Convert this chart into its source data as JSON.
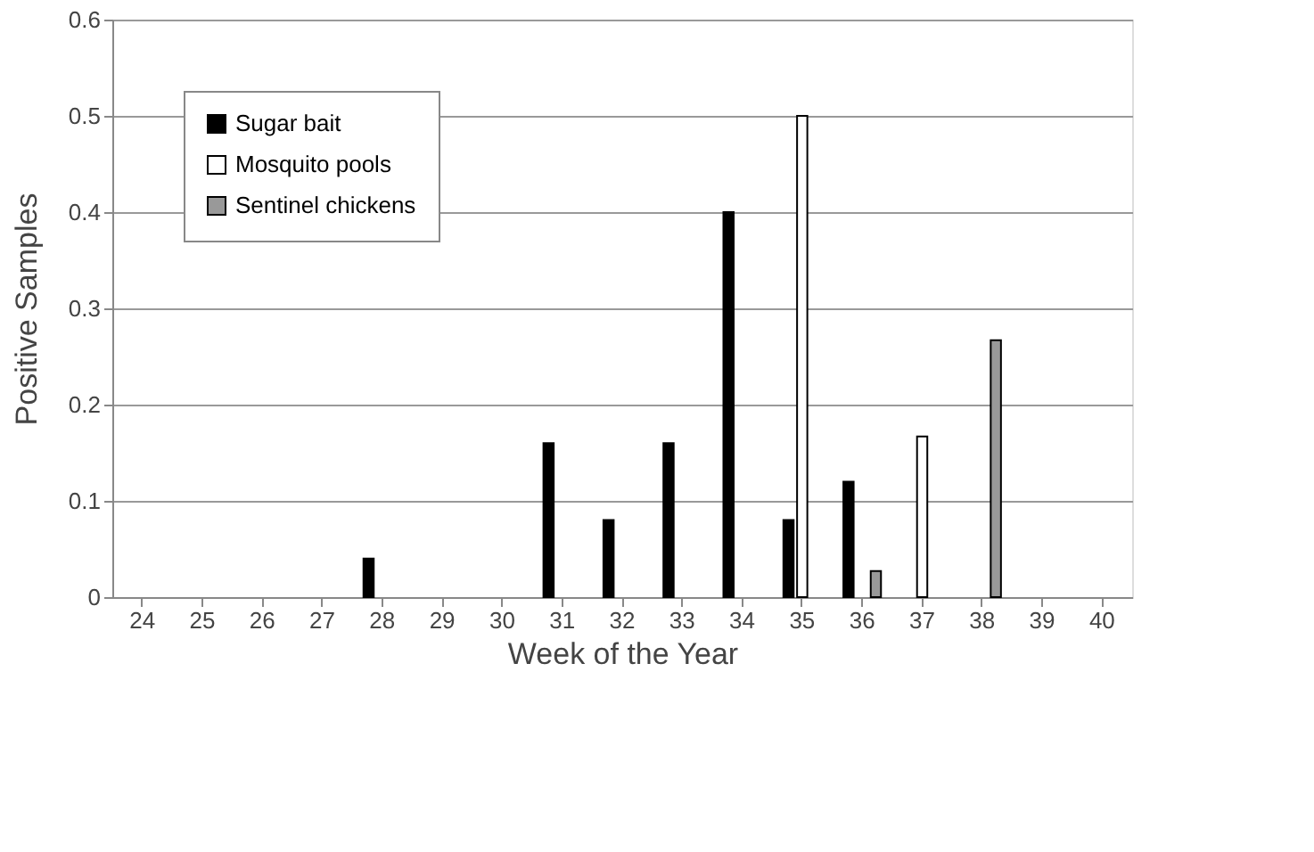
{
  "chart_data": {
    "type": "bar",
    "xlabel": "Week of the Year",
    "ylabel": "Positive Samples",
    "categories": [
      "24",
      "25",
      "26",
      "27",
      "28",
      "29",
      "30",
      "31",
      "32",
      "33",
      "34",
      "35",
      "36",
      "37",
      "38",
      "39",
      "40"
    ],
    "series": [
      {
        "name": "Sugar bait",
        "color": "#000000",
        "values": [
          null,
          null,
          null,
          null,
          0.04,
          null,
          null,
          0.16,
          0.08,
          0.16,
          0.4,
          0.08,
          0.12,
          null,
          null,
          null,
          null
        ]
      },
      {
        "name": "Mosquito pools",
        "color": "#ffffff",
        "values": [
          null,
          null,
          null,
          null,
          null,
          null,
          null,
          null,
          null,
          null,
          null,
          0.5,
          null,
          0.167,
          null,
          null,
          null
        ]
      },
      {
        "name": "Sentinel chickens",
        "color": "#999999",
        "values": [
          null,
          null,
          null,
          null,
          null,
          null,
          null,
          null,
          null,
          null,
          null,
          null,
          0.027,
          null,
          0.267,
          null,
          null
        ]
      }
    ],
    "ylim": [
      0,
      0.6
    ],
    "yticks": [
      0,
      0.1,
      0.2,
      0.3,
      0.4,
      0.5,
      0.6
    ],
    "grid": "y",
    "legend": "top left"
  }
}
